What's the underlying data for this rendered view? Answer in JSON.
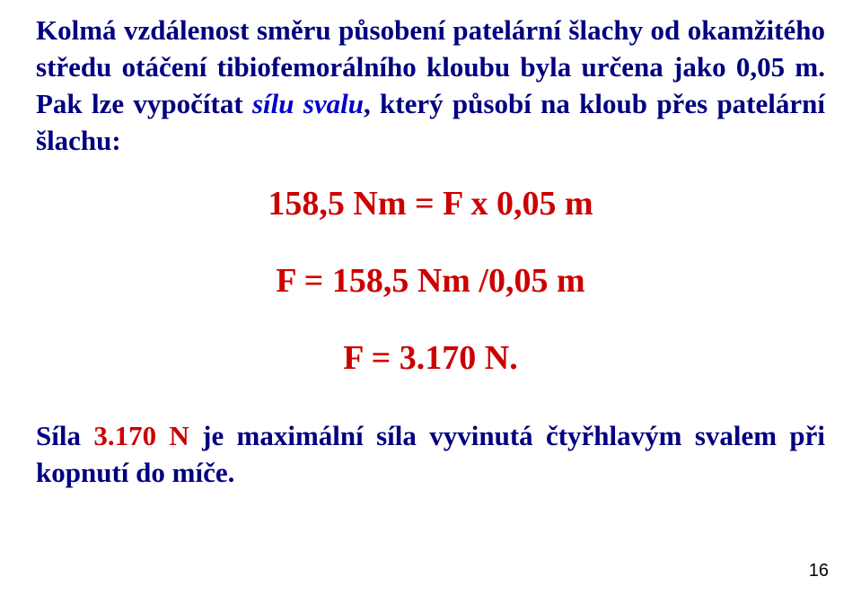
{
  "paragraph": {
    "part1": "Kolmá vzdálenost směru působení patelární šlachy od okamžitého středu otáčení tibiofemorálního kloubu byla určena jako 0,05 m. Pak lze vypočítat ",
    "italic": "sílu svalu",
    "part2": ", který působí na kloub přes patelární šlachu:"
  },
  "equations": {
    "eq1": "158,5 Nm = F x 0,05 m",
    "eq2": "F = 158,5 Nm /0,05 m",
    "eq3": "F = 3.170 N."
  },
  "footer": {
    "pre": "Síla ",
    "num": "3.170 N",
    "post": " je maximální síla vyvinutá čtyřhlavým svalem při kopnutí do míče."
  },
  "page_number": "16",
  "colors": {
    "text_main": "#000080",
    "text_italic": "#0000cc",
    "equation": "#cc0000",
    "highlight_num": "#cc0000",
    "background": "#ffffff"
  },
  "fontsizes": {
    "body_pt": 31,
    "equation_pt": 38,
    "page_num_pt": 20
  }
}
